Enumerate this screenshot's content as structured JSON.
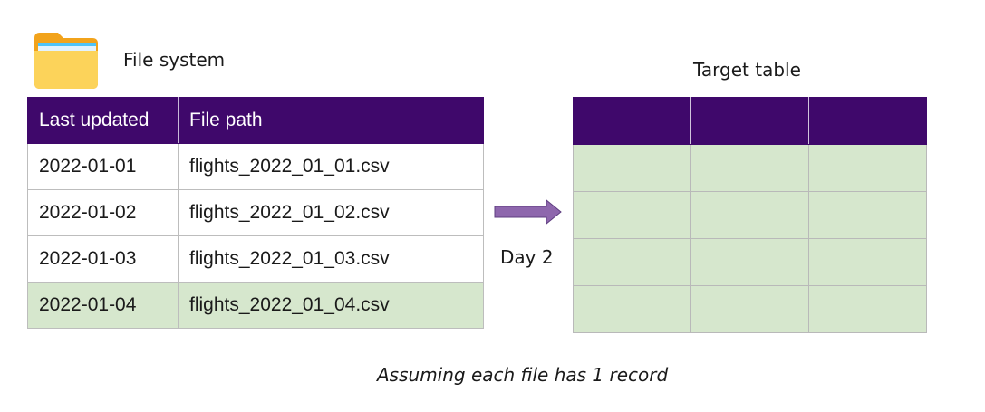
{
  "file_system": {
    "label": "File system",
    "columns": [
      "Last updated",
      "File path"
    ],
    "rows": [
      {
        "date": "2022-01-01",
        "path": "flights_2022_01_01.csv"
      },
      {
        "date": "2022-01-02",
        "path": "flights_2022_01_02.csv"
      },
      {
        "date": "2022-01-03",
        "path": "flights_2022_01_03.csv"
      },
      {
        "date": "2022-01-04",
        "path": "flights_2022_01_04.csv"
      }
    ]
  },
  "arrow_label": "Day 2",
  "target_table": {
    "label": "Target table"
  },
  "caption": "Assuming each file has 1 record",
  "colors": {
    "header": "#3f086b",
    "highlight": "#d6e7cd",
    "arrow": "#8e67ad",
    "folder": "#fbc02d"
  },
  "icons": [
    "folder-icon",
    "right-arrow-icon"
  ]
}
